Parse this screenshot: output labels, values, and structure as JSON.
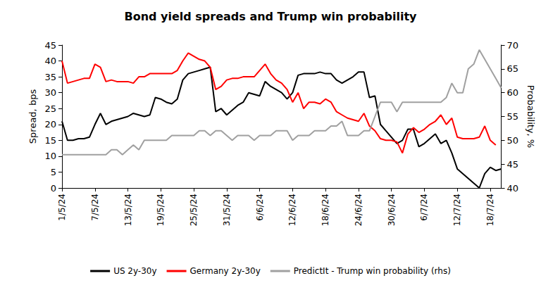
{
  "chart_data": {
    "type": "line",
    "title": "Bond yield spreads and Trump win probability",
    "y_label": "Spread, bps",
    "y2_label": "Probability, %",
    "categories": [
      "1/5/24",
      null,
      null,
      null,
      null,
      null,
      "7/5/24",
      null,
      null,
      null,
      null,
      null,
      "13/5/24",
      null,
      null,
      null,
      null,
      null,
      "19/5/24",
      null,
      null,
      null,
      null,
      null,
      "25/5/24",
      null,
      null,
      null,
      null,
      null,
      "31/5/24",
      null,
      null,
      null,
      null,
      null,
      "6/6/24",
      null,
      null,
      null,
      null,
      null,
      "12/6/24",
      null,
      null,
      null,
      null,
      null,
      "18/6/24",
      null,
      null,
      null,
      null,
      null,
      "24/6/24",
      null,
      null,
      null,
      null,
      null,
      "30/6/24",
      null,
      null,
      null,
      null,
      null,
      "6/7/24",
      null,
      null,
      null,
      null,
      null,
      "12/7/24",
      null,
      null,
      null,
      null,
      null,
      "18/7/24",
      null,
      null
    ],
    "series": [
      {
        "name": "US 2y-30y",
        "color": "#000000",
        "axis": "y",
        "values": [
          21,
          15,
          15,
          15.5,
          15.5,
          16,
          20,
          23.5,
          20,
          21,
          21.5,
          22,
          22.5,
          23.5,
          23,
          22.5,
          23,
          28.5,
          28,
          27,
          26.5,
          28,
          34,
          36,
          36.5,
          37,
          37.5,
          38,
          24,
          25,
          23,
          24.5,
          26,
          27,
          30,
          29.5,
          29,
          33.5,
          32,
          31,
          30,
          28,
          30,
          35.5,
          36,
          36,
          36,
          36.5,
          36,
          36,
          34,
          33,
          34,
          35,
          36.5,
          36.5,
          28.5,
          29,
          20,
          18,
          16,
          14,
          15,
          18.5,
          18.5,
          13,
          14,
          15.5,
          17,
          14,
          15,
          11,
          6,
          4.5,
          3,
          1.5,
          0,
          4.5,
          6.5,
          5.5,
          6
        ]
      },
      {
        "name": "Germany 2y-30y",
        "color": "#ff0000",
        "axis": "y",
        "values": [
          40,
          33,
          33.5,
          34,
          34.5,
          34.5,
          39,
          38,
          33.5,
          34,
          33.5,
          33.5,
          33.5,
          33,
          35,
          35,
          36,
          36,
          36,
          36,
          36,
          37,
          40,
          42.5,
          41.5,
          40.5,
          40,
          38,
          31,
          32,
          34,
          34.5,
          34.5,
          35,
          35,
          35,
          37,
          39,
          36,
          34,
          33,
          31,
          27,
          30,
          25,
          27,
          27,
          26.5,
          28,
          27,
          24,
          23,
          22,
          21.5,
          21,
          23.5,
          19.5,
          18,
          15.5,
          15,
          15,
          14.5,
          11,
          17,
          19,
          17.5,
          18.5,
          20,
          21,
          23,
          20,
          22,
          16,
          15.5,
          15.5,
          15.5,
          16,
          19.5,
          15,
          13.5,
          null
        ]
      },
      {
        "name": "PredictIt - Trump win probability (rhs)",
        "color": "#a0a0a0",
        "axis": "y2",
        "values": [
          47,
          47,
          47,
          47,
          47,
          47,
          47,
          47,
          47,
          48,
          48,
          47,
          48,
          49,
          48,
          50,
          50,
          50,
          50,
          50,
          51,
          51,
          51,
          51,
          51,
          52,
          52,
          51,
          52,
          52,
          51,
          50,
          51,
          51,
          51,
          50,
          51,
          51,
          51,
          52,
          52,
          52,
          50,
          51,
          51,
          51,
          52,
          52,
          52,
          53,
          53,
          54,
          51,
          51,
          51,
          52,
          52,
          55,
          58,
          58,
          58,
          56,
          58,
          58,
          58,
          58,
          58,
          58,
          58,
          58,
          59,
          62,
          60,
          60,
          65,
          66,
          69,
          67,
          65,
          63,
          61
        ]
      }
    ],
    "ylim": [
      0,
      45
    ],
    "yticks": [
      0,
      5,
      10,
      15,
      20,
      25,
      30,
      35,
      40,
      45
    ],
    "y2lim": [
      40,
      70
    ],
    "y2ticks": [
      40,
      45,
      50,
      55,
      60,
      65,
      70
    ],
    "grid": false,
    "legend": "bottom"
  }
}
